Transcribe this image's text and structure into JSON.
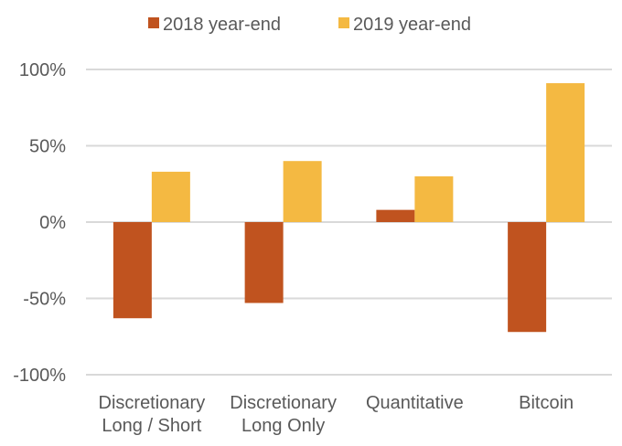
{
  "chart_data": {
    "type": "bar",
    "title": "",
    "xlabel": "",
    "ylabel": "",
    "categories": [
      [
        "Discretionary",
        "Long / Short"
      ],
      [
        "Discretionary",
        "Long Only"
      ],
      [
        "Quantitative"
      ],
      [
        "Bitcoin"
      ]
    ],
    "series": [
      {
        "name": "2018 year-end",
        "color": "#C0531F",
        "values": [
          -63,
          -53,
          8,
          -72
        ]
      },
      {
        "name": "2019 year-end",
        "color": "#F4B942",
        "values": [
          33,
          40,
          30,
          91
        ]
      }
    ],
    "ylim": [
      -100,
      100
    ],
    "yticks": [
      100,
      50,
      0,
      -50,
      -100
    ],
    "ytick_labels": [
      "100%",
      "50%",
      "0%",
      "-50%",
      "-100%"
    ],
    "grid": true,
    "legend_position": "top"
  }
}
